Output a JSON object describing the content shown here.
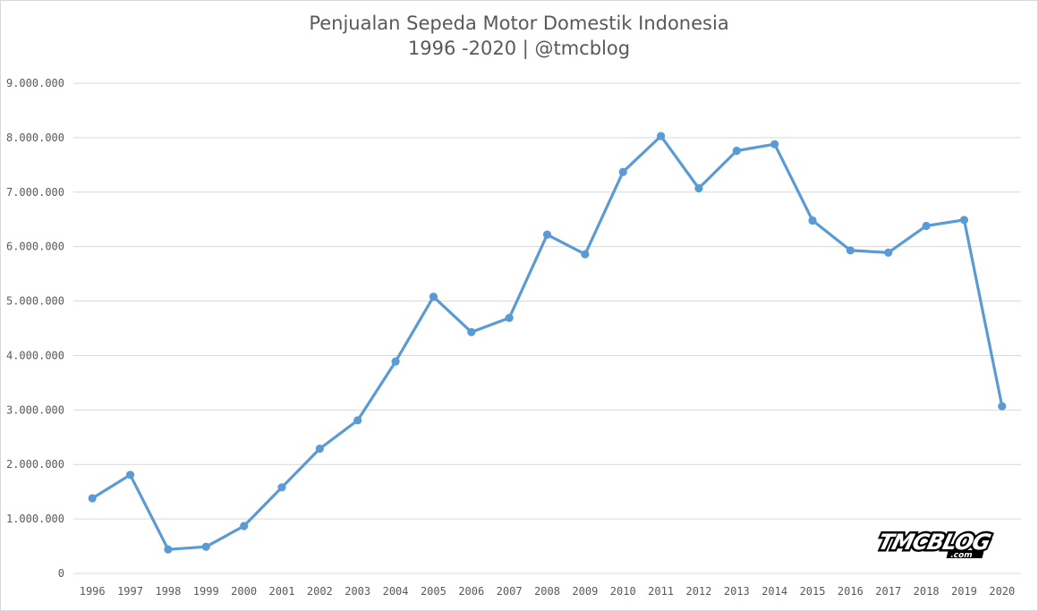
{
  "chart_data": {
    "type": "line",
    "title_line1": "Penjualan Sepeda Motor Domestik Indonesia",
    "title_line2": "1996 -2020 | @tmcblog",
    "xlabel": "",
    "ylabel": "",
    "ylim": [
      0,
      9000000
    ],
    "yticks": [
      {
        "value": 0,
        "label": "0"
      },
      {
        "value": 1000000,
        "label": "1.000.000"
      },
      {
        "value": 2000000,
        "label": "2.000.000"
      },
      {
        "value": 3000000,
        "label": "3.000.000"
      },
      {
        "value": 4000000,
        "label": "4.000.000"
      },
      {
        "value": 5000000,
        "label": "5.000.000"
      },
      {
        "value": 6000000,
        "label": "6.000.000"
      },
      {
        "value": 7000000,
        "label": "7.000.000"
      },
      {
        "value": 8000000,
        "label": "8.000.000"
      },
      {
        "value": 9000000,
        "label": "9.000.000"
      }
    ],
    "categories": [
      "1996",
      "1997",
      "1998",
      "1999",
      "2000",
      "2001",
      "2002",
      "2003",
      "2004",
      "2005",
      "2006",
      "2007",
      "2008",
      "2009",
      "2010",
      "2011",
      "2012",
      "2013",
      "2014",
      "2015",
      "2016",
      "2017",
      "2018",
      "2019",
      "2020"
    ],
    "series": [
      {
        "values": [
          1380000,
          1810000,
          440000,
          490000,
          870000,
          1580000,
          2290000,
          2810000,
          3890000,
          5080000,
          4430000,
          4690000,
          6220000,
          5860000,
          7370000,
          8030000,
          7070000,
          7760000,
          7880000,
          6480000,
          5930000,
          5890000,
          6380000,
          6490000,
          3070000
        ],
        "color": "#5b9bd5"
      }
    ],
    "grid": true,
    "gridline_color": "#d9d9d9",
    "legend": "none"
  },
  "watermark": {
    "text_main": "TMCBLOG",
    "text_sub": ".com"
  }
}
